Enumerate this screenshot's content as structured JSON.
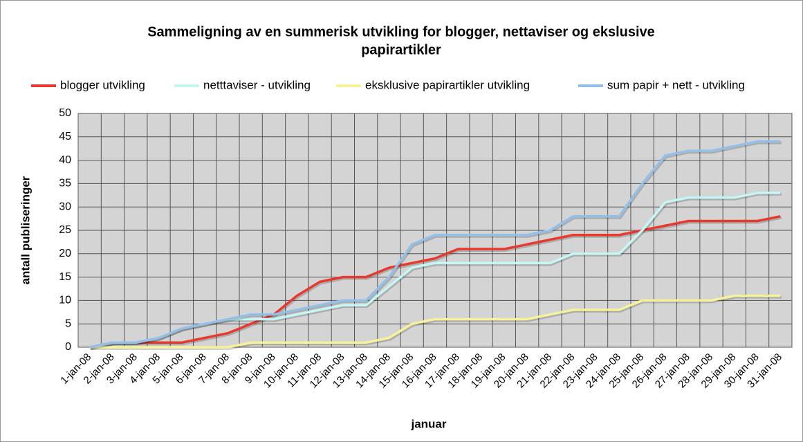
{
  "chart_data": {
    "type": "line",
    "title": [
      "Sammeligning av en summerisk utvikling for blogger, nettaviser og ekslusive",
      "papirartikler"
    ],
    "x_label": "januar",
    "y_label": "antall publiseringer",
    "categories": [
      "1-jan-08",
      "2-jan-08",
      "3-jan-08",
      "4-jan-08",
      "5-jan-08",
      "6-jan-08",
      "7-jan-08",
      "8-jan-08",
      "9-jan-08",
      "10-jan-08",
      "11-jan-08",
      "12-jan-08",
      "13-jan-08",
      "14-jan-08",
      "15-jan-08",
      "16-jan-08",
      "17-jan-08",
      "18-jan-08",
      "19-jan-08",
      "20-jan-08",
      "21-jan-08",
      "22-jan-08",
      "23-jan-08",
      "24-jan-08",
      "25-jan-08",
      "26-jan-08",
      "27-jan-08",
      "28-jan-08",
      "29-jan-08",
      "30-jan-08",
      "31-jan-08"
    ],
    "series": [
      {
        "name": "blogger utvikling",
        "color": "#e8392f",
        "values": [
          0,
          1,
          1,
          1,
          1,
          2,
          3,
          5,
          7,
          11,
          14,
          15,
          15,
          17,
          18,
          19,
          21,
          21,
          21,
          22,
          23,
          24,
          24,
          24,
          25,
          26,
          27,
          27,
          27,
          27,
          28
        ]
      },
      {
        "name": "netttaviser - utvikling",
        "color": "#c4f6f6",
        "values": [
          0,
          1,
          1,
          2,
          4,
          5,
          6,
          6,
          6,
          7,
          8,
          9,
          9,
          13,
          17,
          18,
          18,
          18,
          18,
          18,
          18,
          20,
          20,
          20,
          25,
          31,
          32,
          32,
          32,
          33,
          33
        ]
      },
      {
        "name": "eksklusive papirartikler utvikling",
        "color": "#f5f29a",
        "values": [
          0,
          0,
          0,
          0,
          0,
          0,
          0,
          1,
          1,
          1,
          1,
          1,
          1,
          2,
          5,
          6,
          6,
          6,
          6,
          6,
          7,
          8,
          8,
          8,
          10,
          10,
          10,
          10,
          11,
          11,
          11
        ]
      },
      {
        "name": "sum papir + nett - utvikling",
        "color": "#93c0e8",
        "values": [
          0,
          1,
          1,
          2,
          4,
          5,
          6,
          7,
          7,
          8,
          9,
          10,
          10,
          15,
          22,
          24,
          24,
          24,
          24,
          24,
          25,
          28,
          28,
          28,
          35,
          41,
          42,
          42,
          43,
          44,
          44
        ]
      }
    ],
    "ylim": [
      0,
      50
    ],
    "yticks": [
      0,
      5,
      10,
      15,
      20,
      25,
      30,
      35,
      40,
      45,
      50
    ],
    "grid": true
  }
}
